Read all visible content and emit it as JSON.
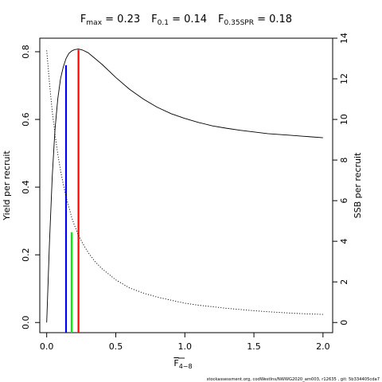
{
  "chart_data": {
    "type": "line",
    "title_parts": [
      {
        "name": "F",
        "sub": "max",
        "eq": " = 0.23"
      },
      {
        "name": "F",
        "sub": "0.1",
        "eq": " = 0.14"
      },
      {
        "name": "F",
        "sub": "0.35SPR",
        "eq": " = 0.18"
      }
    ],
    "xlabel": {
      "main": "F",
      "sub": "4−8"
    },
    "ylabel_left": "Yield per recruit",
    "ylabel_right": "SSB per recruit",
    "footer": "stockassessment.org, codWestIns/NWWG2020_am003, r12635 , git: 5b334405cda7",
    "xlim": [
      -0.05,
      2.07
    ],
    "ylim_left": [
      -0.03,
      0.84
    ],
    "ylim_right": [
      -0.5,
      14.0
    ],
    "x_ticks": [
      0,
      0.5,
      1,
      1.5,
      2
    ],
    "x_tick_labels": [
      "0.0",
      "0.5",
      "1.0",
      "1.5",
      "2.0"
    ],
    "y_left_ticks": [
      0,
      0.2,
      0.4,
      0.6,
      0.8
    ],
    "y_left_tick_labels": [
      "0.0",
      "0.2",
      "0.4",
      "0.6",
      "0.8"
    ],
    "y_right_ticks": [
      0,
      2,
      4,
      6,
      8,
      10,
      12,
      14
    ],
    "y_right_tick_labels": [
      "0",
      "2",
      "4",
      "6",
      "8",
      "10",
      "12",
      "14"
    ],
    "series": [
      {
        "name": "Yield per recruit",
        "axis": "left",
        "style": "solid",
        "x": [
          0,
          0.02,
          0.04,
          0.06,
          0.08,
          0.1,
          0.12,
          0.14,
          0.16,
          0.18,
          0.2,
          0.23,
          0.26,
          0.3,
          0.35,
          0.4,
          0.5,
          0.6,
          0.7,
          0.8,
          0.9,
          1.0,
          1.1,
          1.2,
          1.3,
          1.4,
          1.5,
          1.6,
          1.7,
          1.8,
          1.9,
          2.0
        ],
        "y": [
          0.0,
          0.235,
          0.43,
          0.57,
          0.66,
          0.72,
          0.755,
          0.78,
          0.795,
          0.802,
          0.806,
          0.808,
          0.805,
          0.797,
          0.78,
          0.763,
          0.724,
          0.689,
          0.66,
          0.636,
          0.617,
          0.603,
          0.591,
          0.581,
          0.574,
          0.568,
          0.563,
          0.558,
          0.555,
          0.552,
          0.549,
          0.546
        ]
      },
      {
        "name": "SSB per recruit",
        "axis": "right",
        "style": "dotted",
        "x": [
          0,
          0.02,
          0.04,
          0.06,
          0.08,
          0.1,
          0.12,
          0.14,
          0.16,
          0.18,
          0.2,
          0.23,
          0.26,
          0.3,
          0.35,
          0.4,
          0.5,
          0.6,
          0.7,
          0.8,
          0.9,
          1.0,
          1.1,
          1.2,
          1.3,
          1.4,
          1.5,
          1.6,
          1.7,
          1.8,
          1.9,
          2.0
        ],
        "y": [
          13.4,
          11.8,
          10.4,
          9.3,
          8.3,
          7.5,
          6.8,
          6.2,
          5.7,
          5.2,
          4.8,
          4.3,
          3.9,
          3.45,
          3.0,
          2.65,
          2.1,
          1.7,
          1.45,
          1.25,
          1.1,
          0.95,
          0.85,
          0.78,
          0.7,
          0.64,
          0.58,
          0.53,
          0.49,
          0.45,
          0.42,
          0.4
        ]
      }
    ],
    "reference_lines": [
      {
        "name": "F0.1",
        "x": 0.14,
        "y_top": 0.76,
        "color": "#0000ff"
      },
      {
        "name": "F0.35SPR",
        "x": 0.18,
        "y_top": 0.267,
        "color": "#00ee00"
      },
      {
        "name": "Fmax",
        "x": 0.23,
        "y_top": 0.806,
        "color": "#ff0000"
      }
    ],
    "grid": false,
    "legend": "none"
  }
}
